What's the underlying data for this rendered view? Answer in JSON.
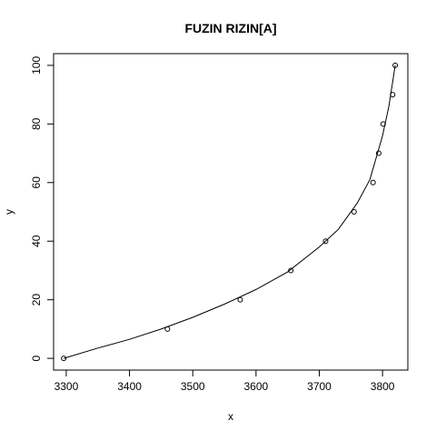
{
  "chart_data": {
    "type": "scatter",
    "title": "FUZIN RIZIN[A]",
    "xlabel": "x",
    "ylabel": "y",
    "xlim": [
      3280,
      3840
    ],
    "ylim": [
      -4,
      104
    ],
    "xticks": [
      3300,
      3400,
      3500,
      3600,
      3700,
      3800
    ],
    "yticks": [
      0,
      20,
      40,
      60,
      80,
      100
    ],
    "grid": false,
    "legend": "none",
    "points": [
      {
        "x": 3296,
        "y": 0
      },
      {
        "x": 3460,
        "y": 10
      },
      {
        "x": 3575,
        "y": 20
      },
      {
        "x": 3655,
        "y": 30
      },
      {
        "x": 3710,
        "y": 40
      },
      {
        "x": 3755,
        "y": 50
      },
      {
        "x": 3785,
        "y": 60
      },
      {
        "x": 3794,
        "y": 70
      },
      {
        "x": 3801,
        "y": 80
      },
      {
        "x": 3816,
        "y": 90
      },
      {
        "x": 3820,
        "y": 100
      }
    ],
    "fit_curve": {
      "x": [
        3296,
        3350,
        3400,
        3450,
        3500,
        3550,
        3600,
        3650,
        3700,
        3730,
        3760,
        3780,
        3800,
        3810,
        3820
      ],
      "y": [
        0,
        3.5,
        6.5,
        10,
        14,
        18.5,
        23.5,
        29.5,
        38,
        44,
        53,
        61,
        76,
        86,
        100
      ]
    }
  }
}
